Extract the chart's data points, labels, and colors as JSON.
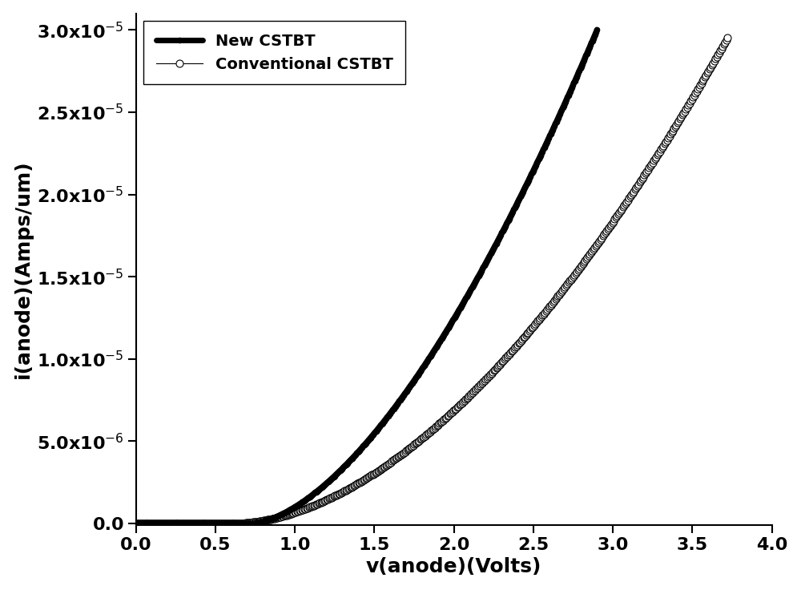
{
  "xlabel": "v(anode)(Volts)",
  "ylabel": "i(anode)(Amps/um)",
  "xlim": [
    0.0,
    4.0
  ],
  "ylim": [
    -1e-07,
    3.1e-05
  ],
  "yticks": [
    0.0,
    5e-06,
    1e-05,
    1.5e-05,
    2e-05,
    2.5e-05,
    3e-05
  ],
  "xticks": [
    0.0,
    0.5,
    1.0,
    1.5,
    2.0,
    2.5,
    3.0,
    3.5,
    4.0
  ],
  "legend_labels": [
    "New CSTBT",
    "Conventional CSTBT"
  ],
  "new_cstbt_color": "#000000",
  "conv_cstbt_color": "#000000",
  "new_cstbt_linewidth": 5.0,
  "conv_cstbt_linewidth": 1.0,
  "new_cstbt_vth": 0.72,
  "new_cstbt_vmax": 2.9,
  "new_cstbt_imax": 3e-05,
  "conv_cstbt_vth": 0.62,
  "conv_cstbt_vmax": 3.72,
  "conv_cstbt_imax": 2.95e-05,
  "xlabel_fontsize": 18,
  "ylabel_fontsize": 18,
  "tick_fontsize": 16,
  "legend_fontsize": 14,
  "background_color": "#ffffff",
  "marker_size_conv": 6.5,
  "n_points_new": 500,
  "n_points_conv": 500
}
